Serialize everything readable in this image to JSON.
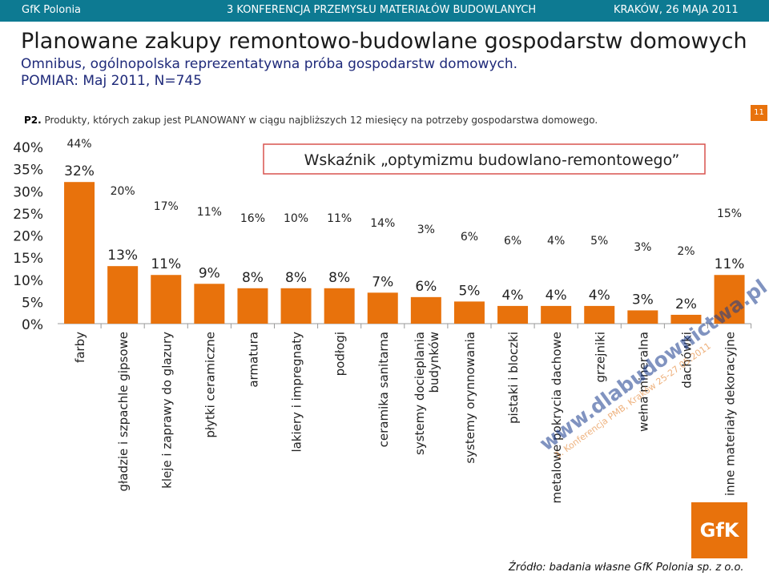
{
  "header": {
    "left": "GfK Polonia",
    "center": "3 KONFERENCJA PRZEMYSŁU MATERIAŁÓW BUDOWLANYCH",
    "right": "KRAKÓW, 26 MAJA 2011"
  },
  "title": "Planowane zakupy remontowo-budowlane gospodarstw domowych",
  "subtitle1": "Omnibus, ogólnopolska reprezentatywna próba gospodarstw domowych.",
  "subtitle2": "POMIAR: Maj 2011, N=745",
  "question_code": "P2.",
  "question_text": " Produkty, których zakup jest PLANOWANY w ciągu najbliższych 12 miesięcy na potrzeby gospodarstwa domowego.",
  "page_number": "11",
  "source": "Źródło: badania własne GfK Polonia sp. z o.o.",
  "watermark": {
    "line1": "www.dlabudownictwa.pl",
    "line2": "3. Konferencja PMB, Kraków 25-27.05.2011"
  },
  "logo_text": "GfK",
  "colors": {
    "bar": "#e8720c",
    "header_bar": "#0d7a92",
    "box_border": "#d9534f",
    "subtitle": "#1f2a7a"
  },
  "chart_data": {
    "type": "bar",
    "ylim": [
      0,
      40
    ],
    "yticks": [
      "0%",
      "5%",
      "10%",
      "15%",
      "20%",
      "25%",
      "30%",
      "35%",
      "40%"
    ],
    "categories": [
      [
        "farby"
      ],
      [
        "gładzie i szpachle gipsowe"
      ],
      [
        "kleje i zaprawy do glazury"
      ],
      [
        "płytki ceramiczne"
      ],
      [
        "armatura"
      ],
      [
        "lakiery i impregnaty"
      ],
      [
        "podłogi"
      ],
      [
        "ceramika sanitarna"
      ],
      [
        "systemy docieplania",
        "budynków"
      ],
      [
        "systemy orynnowania"
      ],
      [
        "pistaki i bloczki"
      ],
      [
        "metalowe pokrycia dachowe"
      ],
      [
        "grzejniki"
      ],
      [
        "wełna mineralna"
      ],
      [
        "dachówki"
      ],
      [
        "inne materiały dekoracyjne"
      ]
    ],
    "values": [
      32,
      13,
      11,
      9,
      8,
      8,
      8,
      7,
      6,
      5,
      4,
      4,
      4,
      3,
      2,
      11
    ],
    "value_labels": [
      "32%",
      "13%",
      "11%",
      "9%",
      "8%",
      "8%",
      "8%",
      "7%",
      "6%",
      "5%",
      "4%",
      "4%",
      "4%",
      "3%",
      "2%",
      "11%"
    ],
    "optimism_index_labels": [
      "44%",
      "20%",
      "17%",
      "11%",
      "16%",
      "10%",
      "11%",
      "14%",
      "3%",
      "6%",
      "6%",
      "4%",
      "5%",
      "3%",
      "2%",
      "15%"
    ],
    "box_title": "Wskaźnik „optymizmu budowlano-remontowego”"
  }
}
